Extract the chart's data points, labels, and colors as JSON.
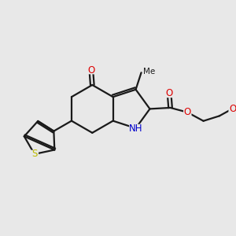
{
  "bg_color": "#e8e8e8",
  "bond_color": "#1a1a1a",
  "bond_width": 1.6,
  "atom_colors": {
    "O": "#dd0000",
    "N": "#0000cc",
    "S": "#bbbb00",
    "C": "#1a1a1a"
  },
  "font_size": 8.5,
  "fig_size": [
    3.0,
    3.0
  ],
  "dpi": 100
}
